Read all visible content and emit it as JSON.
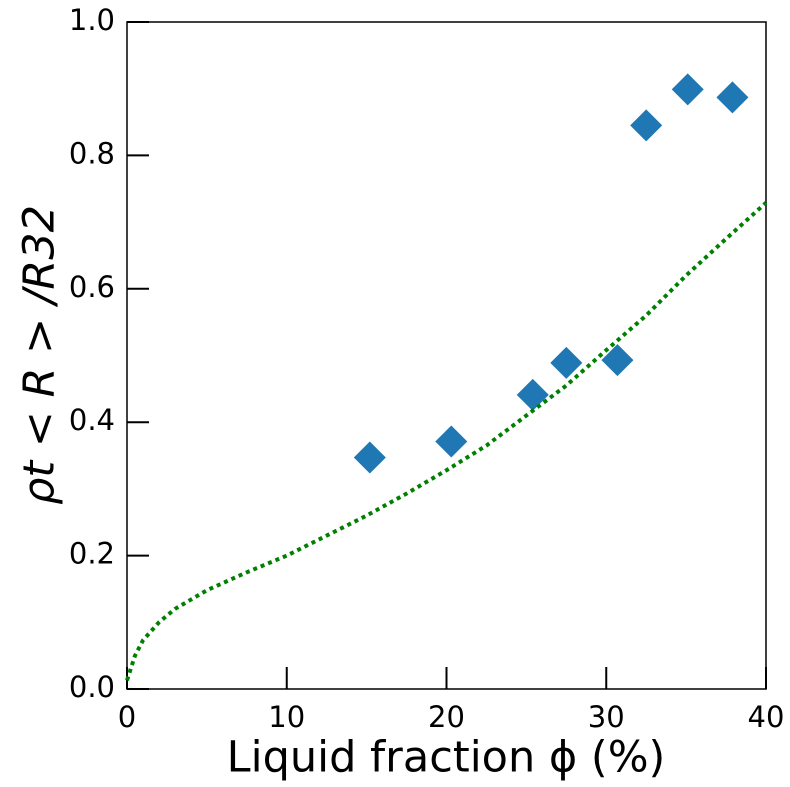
{
  "chart_data": {
    "type": "scatter",
    "xlabel": "Liquid fraction ϕ (%)",
    "ylabel": "ρt < R > /R32",
    "xlim": [
      0,
      40
    ],
    "ylim": [
      0,
      1
    ],
    "xticks": [
      0,
      10,
      20,
      30,
      40
    ],
    "yticks": [
      {
        "value": 0,
        "label": "0.0"
      },
      0.2,
      0.4,
      0.6,
      0.8,
      {
        "value": 1,
        "label": "1.0"
      }
    ],
    "series": [
      {
        "type": "scatter",
        "color": "#1f77b4",
        "x": [
          15.2,
          20.3,
          25.4,
          27.5,
          30.7,
          32.5,
          35.1,
          37.9
        ],
        "values": [
          0.347,
          0.371,
          0.441,
          0.489,
          0.493,
          0.845,
          0.899,
          0.887
        ]
      },
      {
        "type": "line",
        "color": "#008000",
        "dash": "dotted",
        "x": [
          0,
          0.5,
          1,
          2,
          3,
          5,
          7.5,
          10,
          12.5,
          15,
          17.5,
          20,
          22.5,
          25,
          27.5,
          30,
          32.5,
          35,
          37.5,
          40
        ],
        "values": [
          0.013,
          0.05,
          0.073,
          0.1,
          0.12,
          0.148,
          0.175,
          0.2,
          0.23,
          0.26,
          0.293,
          0.328,
          0.365,
          0.41,
          0.455,
          0.508,
          0.56,
          0.62,
          0.675,
          0.729
        ]
      }
    ]
  }
}
